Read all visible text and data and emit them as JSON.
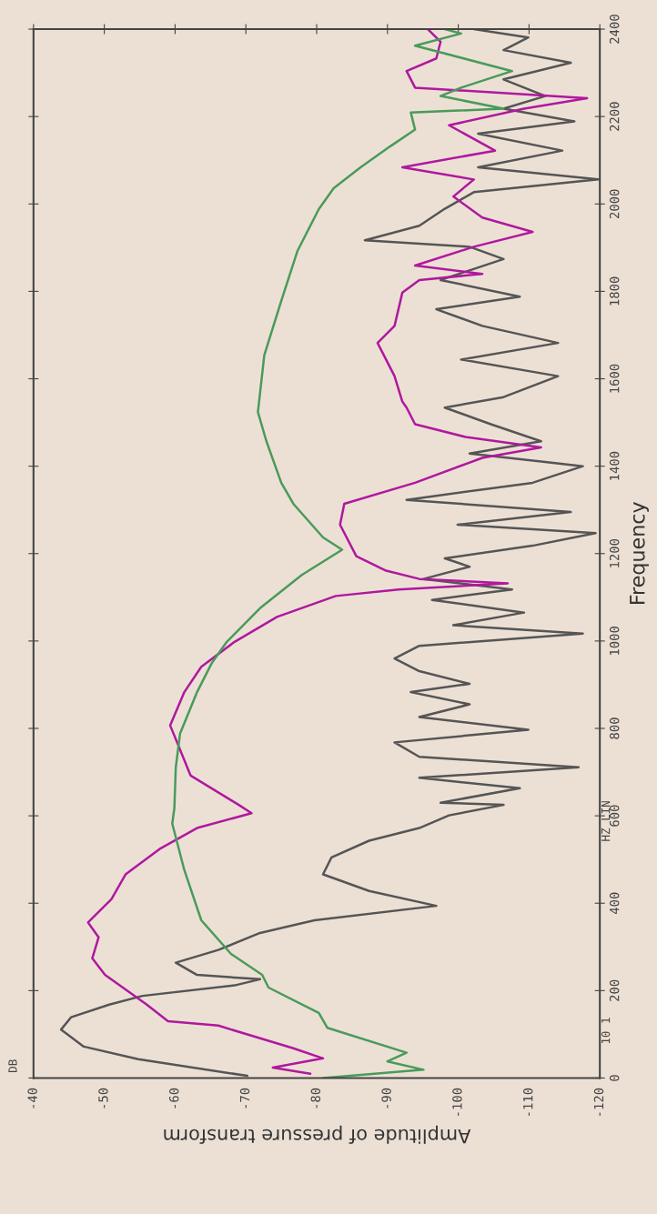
{
  "chart_data": {
    "type": "line",
    "xlabel": "Amplitude of pressure transform",
    "ylabel": "Frequency",
    "annotations": [
      "DB",
      "10 1",
      "HZ LIN"
    ],
    "ylim": [
      0,
      2400
    ],
    "yticks": [
      0,
      200,
      400,
      600,
      800,
      1000,
      1200,
      1400,
      1600,
      1800,
      2000,
      2200,
      2400
    ],
    "xlim": [
      -40,
      -120
    ],
    "xticks": [
      -40,
      -50,
      -60,
      -70,
      -80,
      -90,
      -100,
      -110,
      -120
    ],
    "grid": false,
    "legend": false,
    "marker": "none",
    "line_style": "solid",
    "series": [
      {
        "color": "#555555",
        "values": [
          5,
          43,
          72,
          111,
          139,
          168,
          188,
          212,
          226,
          236,
          264,
          293,
          332,
          361,
          394,
          428,
          466,
          505,
          543,
          572,
          601,
          625,
          630,
          663,
          687,
          711,
          735,
          768,
          797,
          826,
          855,
          883,
          902,
          931,
          960,
          989,
          1017,
          1036,
          1065,
          1094,
          1118,
          1142,
          1170,
          1189,
          1218,
          1247,
          1266,
          1295,
          1323,
          1362,
          1400,
          1429,
          1457,
          1496,
          1534,
          1558,
          1606,
          1644,
          1682,
          1721,
          1759,
          1788,
          1826,
          1874,
          1902,
          1917,
          1950,
          1989,
          2027,
          2056,
          2084,
          2122,
          2161,
          2189,
          2218,
          2247,
          2285,
          2323,
          2352,
          2381,
          2400
        ],
        "x": [
          -70.2,
          -54.8,
          -47.1,
          -43.9,
          -45.3,
          -50.7,
          -55.4,
          -68.4,
          -72.0,
          -63.1,
          -60.1,
          -66.1,
          -72.0,
          -79.7,
          -96.9,
          -87.4,
          -80.9,
          -82.1,
          -87.4,
          -94.5,
          -98.7,
          -106.4,
          -97.5,
          -108.7,
          -94.5,
          -117.0,
          -94.5,
          -91.0,
          -109.9,
          -94.5,
          -101.6,
          -93.3,
          -101.6,
          -94.5,
          -91.0,
          -94.5,
          -117.6,
          -99.3,
          -109.3,
          -96.3,
          -107.6,
          -95.1,
          -101.6,
          -98.1,
          -110.5,
          -119.4,
          -99.9,
          -115.9,
          -92.7,
          -110.5,
          -117.6,
          -101.6,
          -111.7,
          -104.6,
          -98.1,
          -106.4,
          -114.1,
          -100.4,
          -114.1,
          -103.4,
          -96.9,
          -108.7,
          -97.5,
          -106.4,
          -101.6,
          -86.8,
          -94.5,
          -98.1,
          -102.2,
          -119.8,
          -102.8,
          -114.7,
          -102.8,
          -116.4,
          -106.4,
          -112.3,
          -106.4,
          -115.9,
          -106.4,
          -109.9,
          -102.2
        ]
      },
      {
        "color": "#b0189e",
        "values": [
          10,
          24,
          45,
          68,
          120,
          130,
          168,
          236,
          274,
          322,
          356,
          409,
          466,
          524,
          572,
          606,
          625,
          692,
          807,
          883,
          941,
          998,
          1055,
          1103,
          1118,
          1132,
          1142,
          1161,
          1194,
          1266,
          1314,
          1362,
          1419,
          1443,
          1467,
          1496,
          1534,
          1548,
          1606,
          1682,
          1721,
          1797,
          1826,
          1840,
          1859,
          1902,
          1936,
          1969,
          2017,
          2056,
          2084,
          2122,
          2180,
          2218,
          2242,
          2266,
          2304,
          2333,
          2371,
          2400
        ],
        "x": [
          -79.1,
          -73.8,
          -80.9,
          -76.7,
          -66.1,
          -59.0,
          -56.0,
          -50.1,
          -48.3,
          -49.2,
          -47.7,
          -51.0,
          -53.0,
          -57.8,
          -63.1,
          -70.8,
          -69.0,
          -62.2,
          -59.3,
          -61.3,
          -63.7,
          -68.4,
          -74.4,
          -82.7,
          -91.6,
          -107.0,
          -94.5,
          -89.8,
          -85.6,
          -83.3,
          -83.9,
          -93.9,
          -103.4,
          -111.7,
          -101.0,
          -93.9,
          -92.7,
          -92.1,
          -91.0,
          -88.6,
          -91.0,
          -92.1,
          -94.5,
          -103.4,
          -93.9,
          -102.2,
          -110.5,
          -103.4,
          -99.3,
          -102.2,
          -92.1,
          -105.2,
          -98.7,
          -109.3,
          -118.2,
          -93.9,
          -92.7,
          -96.9,
          -97.5,
          -95.7
        ]
      },
      {
        "color": "#4a9a5a",
        "values": [
          0,
          19,
          38,
          58,
          115,
          149,
          207,
          236,
          284,
          361,
          476,
          582,
          618,
          711,
          788,
          883,
          950,
          998,
          1075,
          1151,
          1209,
          1237,
          1314,
          1362,
          1457,
          1524,
          1654,
          1778,
          1893,
          1988,
          2036,
          2084,
          2132,
          2170,
          2209,
          2218,
          2247,
          2266,
          2304,
          2362,
          2390,
          2400
        ],
        "x": [
          -80.9,
          -95.1,
          -90.0,
          -92.7,
          -81.5,
          -80.3,
          -73.2,
          -72.3,
          -67.9,
          -63.7,
          -61.3,
          -59.6,
          -59.9,
          -60.1,
          -60.7,
          -63.1,
          -65.2,
          -67.3,
          -72.0,
          -77.9,
          -83.6,
          -80.9,
          -76.7,
          -75.0,
          -72.9,
          -71.7,
          -72.6,
          -75.0,
          -77.3,
          -80.3,
          -82.4,
          -86.2,
          -90.4,
          -93.9,
          -93.3,
          -106.4,
          -97.5,
          -100.4,
          -107.6,
          -93.9,
          -100.4,
          -98.1
        ]
      }
    ]
  }
}
